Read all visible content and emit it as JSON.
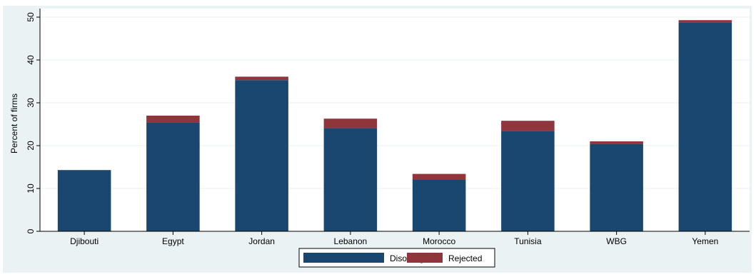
{
  "chart_data": {
    "type": "bar",
    "stacked": true,
    "categories": [
      "Djibouti",
      "Egypt",
      "Jordan",
      "Lebanon",
      "Morocco",
      "Tunisia",
      "WBG",
      "Yemen"
    ],
    "series": [
      {
        "name": "Disouraged",
        "color": "#1a476f",
        "values": [
          14.3,
          25.4,
          35.3,
          24.1,
          12.0,
          23.4,
          20.4,
          48.8
        ]
      },
      {
        "name": "Rejected",
        "color": "#90353b",
        "values": [
          0.0,
          1.6,
          0.8,
          2.2,
          1.4,
          2.4,
          0.6,
          0.5
        ]
      }
    ],
    "ylabel": "Percent of firms",
    "xlabel": "",
    "ylim": [
      0,
      52
    ],
    "yticks": [
      0,
      10,
      20,
      30,
      40,
      50
    ],
    "grid": true,
    "legend_position": "bottom"
  }
}
